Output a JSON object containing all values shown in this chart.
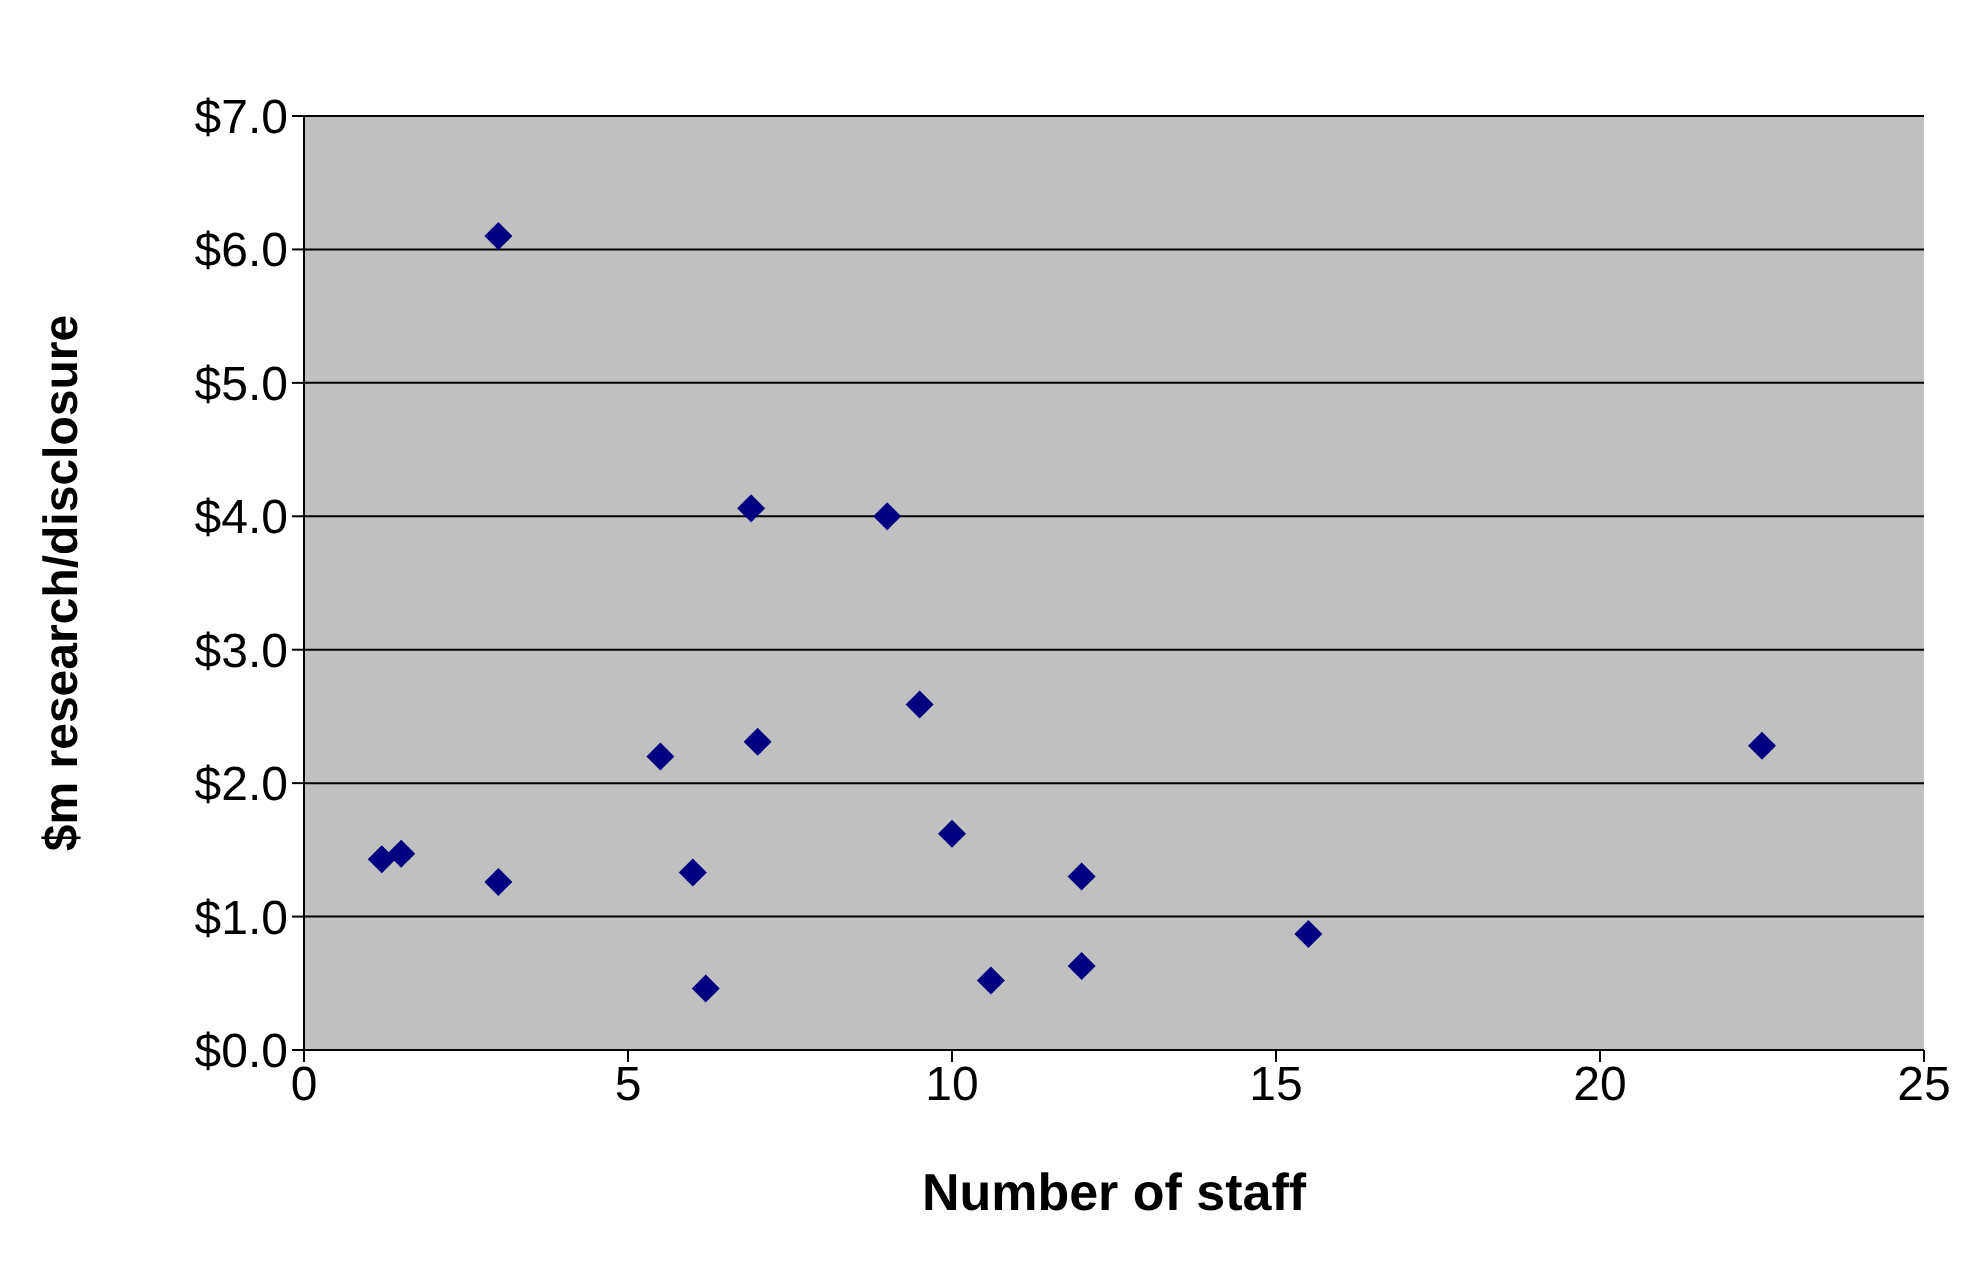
{
  "chart_data": {
    "type": "scatter",
    "xlabel": "Number of staff",
    "ylabel": "$m research/disclosure",
    "marker": "diamond",
    "grid": "y",
    "legend": false,
    "xlim": [
      0,
      25
    ],
    "xticks": [
      0,
      5,
      10,
      15,
      20,
      25
    ],
    "ylim": [
      0,
      7
    ],
    "yticks": [
      {
        "value": 0,
        "label": "$0.0"
      },
      {
        "value": 1,
        "label": "$1.0"
      },
      {
        "value": 2,
        "label": "$2.0"
      },
      {
        "value": 3,
        "label": "$3.0"
      },
      {
        "value": 4,
        "label": "$4.0"
      },
      {
        "value": 5,
        "label": "$5.0"
      },
      {
        "value": 6,
        "label": "$6.0"
      },
      {
        "value": 7,
        "label": "$7.0"
      }
    ],
    "series": [
      {
        "color": "#000080",
        "x": [
          1.2,
          1.5,
          3.0,
          3.0,
          5.5,
          6.0,
          6.2,
          6.9,
          7.0,
          9.0,
          9.5,
          10.0,
          10.6,
          12.0,
          12.0,
          15.5,
          22.5
        ],
        "values": [
          1.43,
          1.47,
          6.1,
          1.26,
          2.2,
          1.33,
          0.46,
          4.06,
          2.31,
          4.0,
          2.59,
          1.62,
          0.52,
          1.3,
          0.63,
          0.87,
          2.28
        ]
      }
    ]
  }
}
